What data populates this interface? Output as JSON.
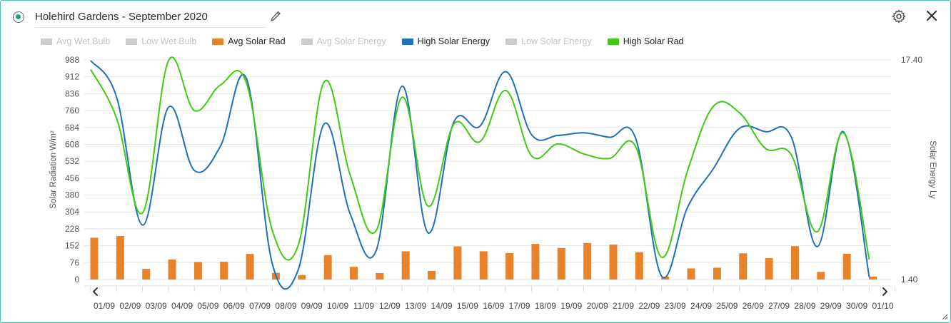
{
  "header": {
    "title": "Holehird Gardens - September 2020"
  },
  "icons": {
    "radio": "radio-selected-icon",
    "edit": "pencil-icon",
    "settings": "gear-icon",
    "close": "close-icon",
    "prev": "chevron-left-icon",
    "next": "chevron-right-icon",
    "resize": "resize-handle-icon"
  },
  "legend": [
    {
      "label": "Avg Wet Bulb",
      "color": "#cccccc",
      "active": false
    },
    {
      "label": "Low Wet Bulb",
      "color": "#cccccc",
      "active": false
    },
    {
      "label": "Avg Solar Rad",
      "color": "#e8832a",
      "active": true
    },
    {
      "label": "Avg Solar Energy",
      "color": "#cccccc",
      "active": false
    },
    {
      "label": "High Solar Energy",
      "color": "#1f6fbf",
      "active": true
    },
    {
      "label": "Low Solar Energy",
      "color": "#cccccc",
      "active": false
    },
    {
      "label": "High Solar Rad",
      "color": "#3ecb12",
      "active": true
    }
  ],
  "chart_data": {
    "type": "bar+line",
    "categories": [
      "01/09",
      "02/09",
      "03/09",
      "04/09",
      "05/09",
      "06/09",
      "07/09",
      "08/09",
      "09/09",
      "10/09",
      "11/09",
      "12/09",
      "13/09",
      "14/09",
      "15/09",
      "16/09",
      "17/09",
      "18/09",
      "19/09",
      "20/09",
      "21/09",
      "22/09",
      "23/09",
      "24/09",
      "25/09",
      "26/09",
      "27/09",
      "28/09",
      "29/09",
      "30/09",
      "01/10"
    ],
    "ylabel": "Solar Radiation W/m²",
    "y2label": "Solar Energy Ly",
    "ylim": [
      0,
      988
    ],
    "y_ticks": [
      "988",
      "912",
      "836",
      "760",
      "684",
      "608",
      "532",
      "456",
      "380",
      "304",
      "228",
      "152",
      "76",
      "0"
    ],
    "y2_ticks": [
      "17.40",
      "1.40"
    ],
    "grid": true,
    "legend_placement": "top-left",
    "series": [
      {
        "name": "Avg Solar Rad",
        "kind": "bar",
        "color": "#e8832a",
        "values": [
          188,
          196,
          48,
          90,
          79,
          80,
          115,
          30,
          20,
          110,
          57,
          29,
          127,
          39,
          149,
          127,
          119,
          160,
          142,
          164,
          157,
          123,
          13,
          50,
          53,
          118,
          96,
          150,
          34,
          116,
          13
        ]
      },
      {
        "name": "High Solar Energy",
        "kind": "line",
        "color": "#1f6fbf",
        "values": [
          985,
          820,
          245,
          775,
          490,
          600,
          905,
          70,
          45,
          700,
          295,
          130,
          870,
          210,
          710,
          690,
          935,
          650,
          648,
          660,
          640,
          635,
          15,
          325,
          500,
          680,
          665,
          640,
          148,
          665,
          10
        ]
      },
      {
        "name": "High Solar Rad",
        "kind": "line",
        "color": "#3ecb12",
        "values": [
          945,
          725,
          300,
          985,
          760,
          875,
          885,
          220,
          155,
          890,
          470,
          220,
          820,
          330,
          700,
          620,
          850,
          555,
          610,
          565,
          545,
          598,
          100,
          490,
          780,
          750,
          590,
          560,
          215,
          660,
          90
        ]
      }
    ]
  }
}
